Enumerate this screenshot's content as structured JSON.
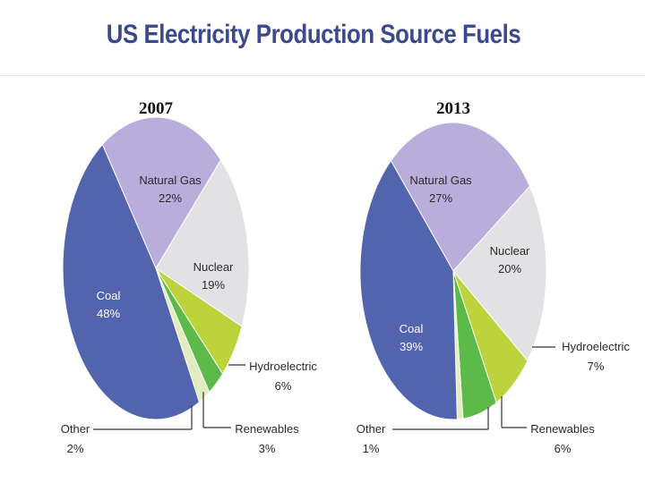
{
  "title": "US Electricity Production Source Fuels",
  "colors": {
    "title": "#3b4a8c",
    "coal": "#5264ad",
    "natural_gas": "#b8addb",
    "nuclear": "#e2e2e4",
    "hydroelectric": "#bcd33b",
    "renewables": "#5cba48",
    "other": "#e3ecbf",
    "leader": "#333333"
  },
  "chart_data": [
    {
      "type": "pie",
      "title": "2007",
      "slices": [
        {
          "key": "natural_gas",
          "label": "Natural Gas",
          "pct_label": "22%",
          "value": 22
        },
        {
          "key": "nuclear",
          "label": "Nuclear",
          "pct_label": "19%",
          "value": 19
        },
        {
          "key": "hydroelectric",
          "label": "Hydroelectric",
          "pct_label": "6%",
          "value": 6
        },
        {
          "key": "renewables",
          "label": "Renewables",
          "pct_label": "3%",
          "value": 3
        },
        {
          "key": "other",
          "label": "Other",
          "pct_label": "2%",
          "value": 2
        },
        {
          "key": "coal",
          "label": "Coal",
          "pct_label": "48%",
          "value": 48
        }
      ]
    },
    {
      "type": "pie",
      "title": "2013",
      "slices": [
        {
          "key": "natural_gas",
          "label": "Natural Gas",
          "pct_label": "27%",
          "value": 27
        },
        {
          "key": "nuclear",
          "label": "Nuclear",
          "pct_label": "20%",
          "value": 20
        },
        {
          "key": "hydroelectric",
          "label": "Hydroelectric",
          "pct_label": "7%",
          "value": 7
        },
        {
          "key": "renewables",
          "label": "Renewables",
          "pct_label": "6%",
          "value": 6
        },
        {
          "key": "other",
          "label": "Other",
          "pct_label": "1%",
          "value": 1
        },
        {
          "key": "coal",
          "label": "Coal",
          "pct_label": "39%",
          "value": 39
        }
      ]
    }
  ]
}
